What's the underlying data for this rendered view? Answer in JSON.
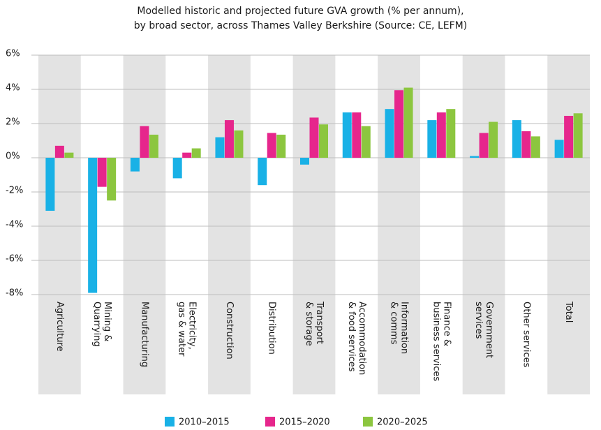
{
  "chart_data": {
    "type": "bar",
    "title": [
      "Modelled historic and projected future GVA growth (% per annum),",
      "by broad sector, across Thames Valley Berkshire (Source: CE, LEFM)"
    ],
    "categories": [
      "Agriculture",
      "Mining &\nQuarrying",
      "Manufacturing",
      "Electricity,\ngas & water",
      "Construction",
      "Distribution",
      "Transport\n& storage",
      "Accommodation\n& food services",
      "Information\n& comms",
      "Finance &\nbusiness services",
      "Government\nservices",
      "Other services",
      "Total"
    ],
    "series": [
      {
        "name": "2010–2015",
        "color": "#19b1e6",
        "values": [
          -3.1,
          -7.9,
          -0.8,
          -1.2,
          1.2,
          -1.6,
          -0.4,
          2.65,
          2.85,
          2.2,
          0.1,
          2.2,
          1.05
        ]
      },
      {
        "name": "2015–2020",
        "color": "#e6268c",
        "values": [
          0.7,
          -1.7,
          1.85,
          0.3,
          2.2,
          1.45,
          2.35,
          2.65,
          3.95,
          2.65,
          1.45,
          1.55,
          2.45
        ]
      },
      {
        "name": "2020–2025",
        "color": "#8cc63f",
        "values": [
          0.3,
          -2.5,
          1.35,
          0.55,
          1.6,
          1.35,
          1.95,
          1.85,
          4.1,
          2.85,
          2.1,
          1.25,
          2.6
        ]
      }
    ],
    "ylim": [
      -8,
      6
    ],
    "yticks": [
      {
        "value": -8,
        "label": "-8%"
      },
      {
        "value": -6,
        "label": "-6%"
      },
      {
        "value": -4,
        "label": "-4%"
      },
      {
        "value": -2,
        "label": "-2%"
      },
      {
        "value": 0,
        "label": "0%"
      },
      {
        "value": 2,
        "label": "2%"
      },
      {
        "value": 4,
        "label": "4%"
      },
      {
        "value": 6,
        "label": "6%"
      }
    ],
    "grid": true
  }
}
